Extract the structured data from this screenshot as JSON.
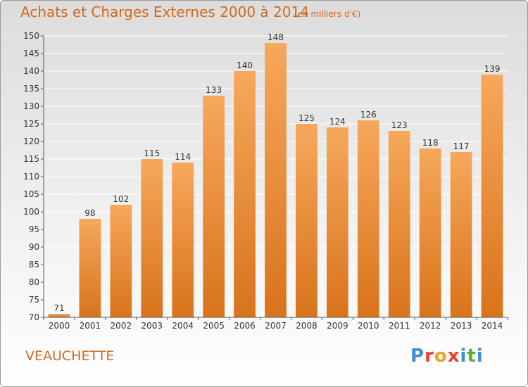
{
  "header": {
    "title": "Achats et Charges Externes 2000 à 2014",
    "unit": "(en milliers d'€)"
  },
  "commune": "VEAUCHETTE",
  "logo": {
    "text": "Proxiti",
    "letter_colors": [
      "#3b8fd6",
      "#e8402f",
      "#f0a020",
      "#e8402f",
      "#3b8fd6",
      "#5ab030",
      "#3b8fd6"
    ]
  },
  "colors": {
    "bar_top": "#f6a85a",
    "bar_bottom": "#d9731c",
    "text_accent": "#d2691e",
    "grid": "#ffffff"
  },
  "chart_data": {
    "type": "bar",
    "title": "Achats et Charges Externes 2000 à 2014",
    "subtitle": "(en milliers d'€)",
    "xlabel": "",
    "ylabel": "",
    "categories": [
      "2000",
      "2001",
      "2002",
      "2003",
      "2004",
      "2005",
      "2006",
      "2007",
      "2008",
      "2009",
      "2010",
      "2011",
      "2012",
      "2013",
      "2014"
    ],
    "values": [
      71,
      98,
      102,
      115,
      114,
      133,
      140,
      148,
      125,
      124,
      126,
      123,
      118,
      117,
      139
    ],
    "ylim": [
      70,
      150
    ],
    "yticks": [
      70,
      75,
      80,
      85,
      90,
      95,
      100,
      105,
      110,
      115,
      120,
      125,
      130,
      135,
      140,
      145,
      150
    ],
    "grid": true,
    "data_labels": true
  }
}
